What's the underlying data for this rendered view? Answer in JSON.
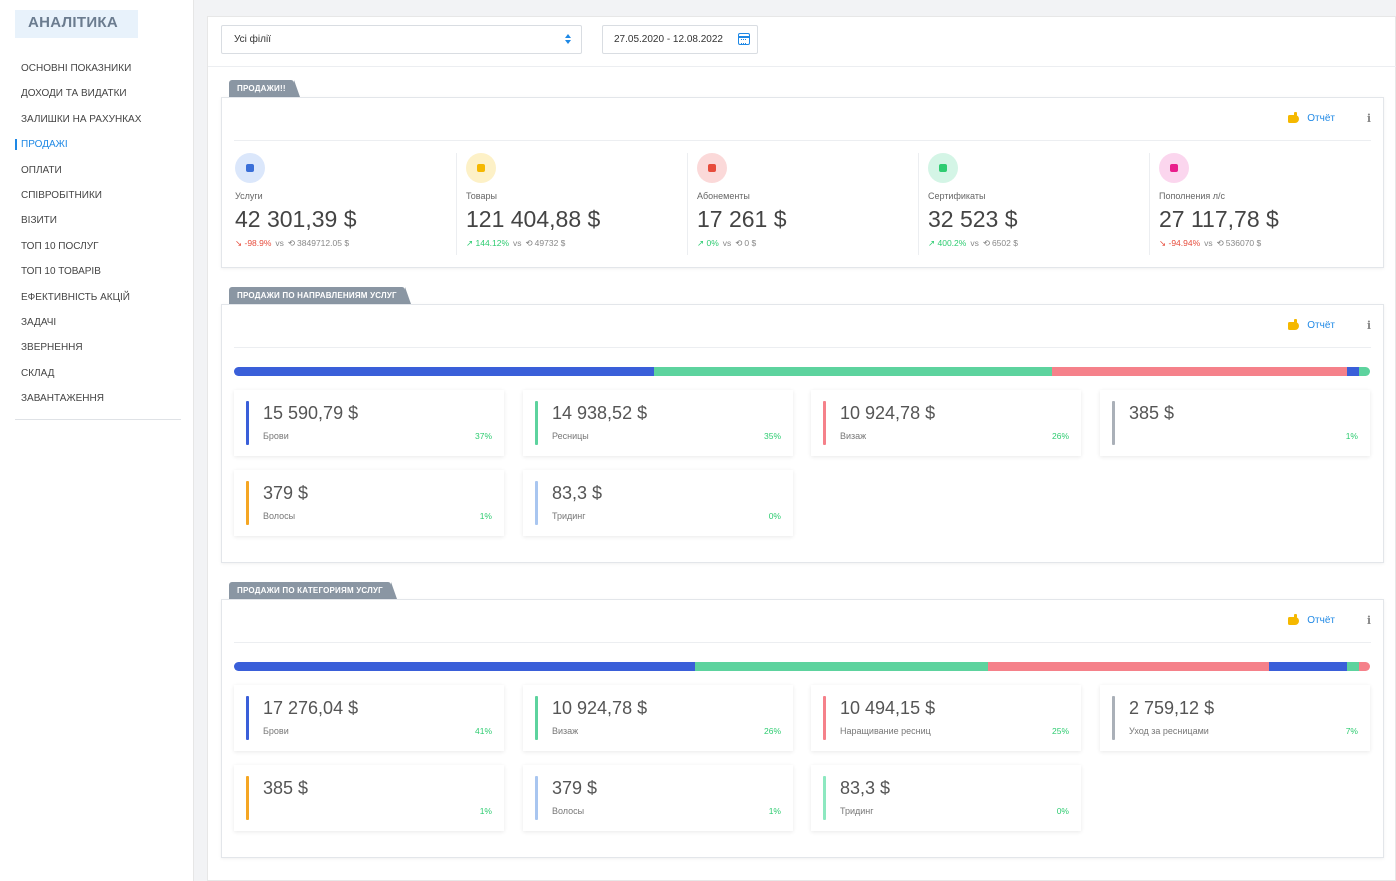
{
  "sidebar": {
    "title": "АНАЛІТИКА",
    "items": [
      {
        "label": "ОСНОВНІ ПОКАЗНИКИ"
      },
      {
        "label": "ДОХОДИ ТА ВИДАТКИ"
      },
      {
        "label": "ЗАЛИШКИ НА РАХУНКАХ"
      },
      {
        "label": "ПРОДАЖІ"
      },
      {
        "label": "ОПЛАТИ"
      },
      {
        "label": "СПІВРОБІТНИКИ"
      },
      {
        "label": "ВІЗИТИ"
      },
      {
        "label": "ТОП 10 ПОСЛУГ"
      },
      {
        "label": "ТОП 10 ТОВАРІВ"
      },
      {
        "label": "ЕФЕКТИВНІСТЬ АКЦІЙ"
      },
      {
        "label": "ЗАДАЧІ"
      },
      {
        "label": "ЗВЕРНЕННЯ"
      },
      {
        "label": "СКЛАД"
      },
      {
        "label": "ЗАВАНТАЖЕННЯ"
      }
    ],
    "active_item": "ПРОДАЖІ"
  },
  "filters": {
    "branch": "Усі філії",
    "date_range": "27.05.2020 - 12.08.2022"
  },
  "sales": {
    "tab": "ПРОДАЖИ!!",
    "report_label": "Отчёт",
    "info_label": "i",
    "stats": [
      {
        "label": "Услуги",
        "value": "42 301,39 $",
        "change": "-98.9%",
        "trend": "down",
        "vs": "vs",
        "prev": "3849712.05 $",
        "icon": "drop-icon",
        "icon_bg": "#dbe7fb",
        "icon_color": "#3a6fd8"
      },
      {
        "label": "Товары",
        "value": "121 404,88 $",
        "change": "144.12%",
        "trend": "up",
        "vs": "vs",
        "prev": "49732 $",
        "icon": "box-icon",
        "icon_bg": "#fdf1c7",
        "icon_color": "#f5b800"
      },
      {
        "label": "Абонементы",
        "value": "17 261 $",
        "change": "0%",
        "trend": "up",
        "vs": "vs",
        "prev": "0 $",
        "icon": "card-icon",
        "icon_bg": "#fbd9d9",
        "icon_color": "#e74c3c"
      },
      {
        "label": "Сертификаты",
        "value": "32 523 $",
        "change": "400.2%",
        "trend": "up",
        "vs": "vs",
        "prev": "6502 $",
        "icon": "gift-icon",
        "icon_bg": "#d4f5e6",
        "icon_color": "#2ecc71"
      },
      {
        "label": "Пополнения л/с",
        "value": "27 117,78 $",
        "change": "-94.94%",
        "trend": "down",
        "vs": "vs",
        "prev": "536070 $",
        "icon": "money-bag-icon",
        "icon_bg": "#fbd6ee",
        "icon_color": "#e91e8c"
      }
    ]
  },
  "directions": {
    "tab": "ПРОДАЖИ ПО НАПРАВЛЕНИЯМ УСЛУГ",
    "report_label": "Отчёт",
    "info_label": "i",
    "bar": [
      {
        "color": "#3a5fd9",
        "share": 37
      },
      {
        "color": "#5dd39e",
        "share": 35
      },
      {
        "color": "#f5818a",
        "share": 26
      },
      {
        "color": "#3a5fd9",
        "share": 1
      },
      {
        "color": "#5dd39e",
        "share": 1
      }
    ],
    "cards": [
      {
        "value": "15 590,79 $",
        "label": "Брови",
        "pct": "37%",
        "color": "#3a5fd9"
      },
      {
        "value": "14 938,52 $",
        "label": "Ресницы",
        "pct": "35%",
        "color": "#5dd39e"
      },
      {
        "value": "10 924,78 $",
        "label": "Визаж",
        "pct": "26%",
        "color": "#f5818a"
      },
      {
        "value": "385 $",
        "label": "",
        "pct": "1%",
        "color": "#aab0b8"
      },
      {
        "value": "379 $",
        "label": "Волосы",
        "pct": "1%",
        "color": "#f5a623"
      },
      {
        "value": "83,3 $",
        "label": "Тридинг",
        "pct": "0%",
        "color": "#a9c6f0"
      }
    ]
  },
  "categories": {
    "tab": "ПРОДАЖИ ПО КАТЕГОРИЯМ УСЛУГ",
    "report_label": "Отчёт",
    "info_label": "i",
    "bar": [
      {
        "color": "#3a5fd9",
        "share": 41
      },
      {
        "color": "#5dd39e",
        "share": 26
      },
      {
        "color": "#f5818a",
        "share": 25
      },
      {
        "color": "#3a5fd9",
        "share": 7
      },
      {
        "color": "#5dd39e",
        "share": 1
      },
      {
        "color": "#f5818a",
        "share": 1
      }
    ],
    "cards": [
      {
        "value": "17 276,04 $",
        "label": "Брови",
        "pct": "41%",
        "color": "#3a5fd9"
      },
      {
        "value": "10 924,78 $",
        "label": "Визаж",
        "pct": "26%",
        "color": "#5dd39e"
      },
      {
        "value": "10 494,15 $",
        "label": "Наращивание ресниц",
        "pct": "25%",
        "color": "#f5818a"
      },
      {
        "value": "2 759,12 $",
        "label": "Уход за ресницами",
        "pct": "7%",
        "color": "#aab0b8"
      },
      {
        "value": "385 $",
        "label": "",
        "pct": "1%",
        "color": "#f5a623"
      },
      {
        "value": "379 $",
        "label": "Волосы",
        "pct": "1%",
        "color": "#a9c6f0"
      },
      {
        "value": "83,3 $",
        "label": "Тридинг",
        "pct": "0%",
        "color": "#8de8c0"
      }
    ]
  }
}
